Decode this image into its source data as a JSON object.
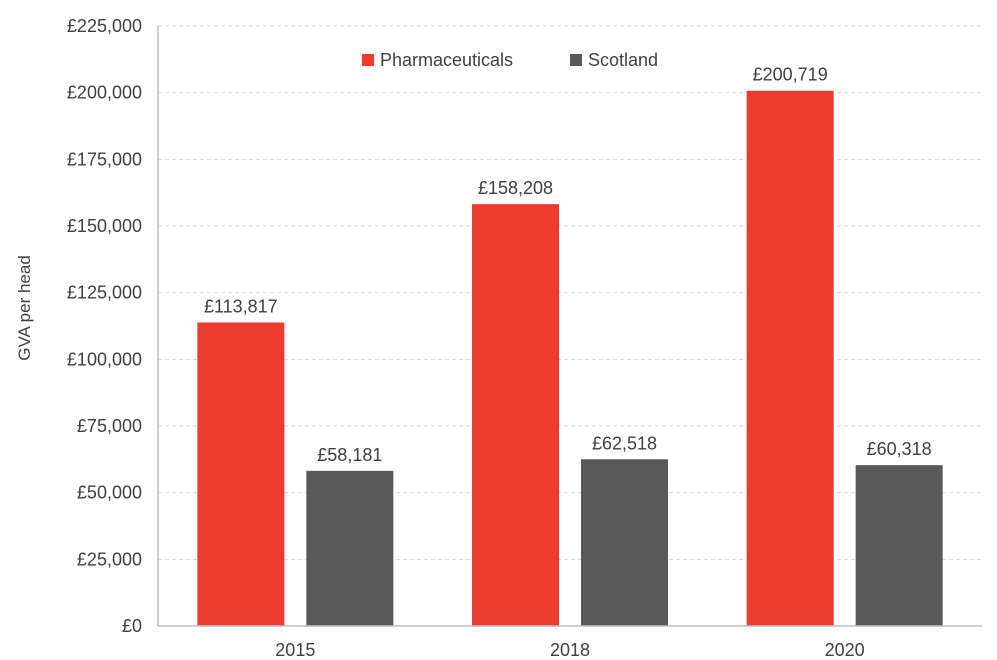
{
  "chart_data": {
    "type": "bar",
    "title": "",
    "xlabel": "",
    "ylabel": "GVA per head",
    "categories": [
      "2015",
      "2018",
      "2020"
    ],
    "series": [
      {
        "name": "Pharmaceuticals",
        "color": "#ee3b2f",
        "values": [
          113817,
          158208,
          200719
        ],
        "labels": [
          "£113,817",
          "£158,208",
          "£200,719"
        ]
      },
      {
        "name": "Scotland",
        "color": "#595959",
        "values": [
          58181,
          62518,
          60318
        ],
        "labels": [
          "£58,181",
          "£62,518",
          "£60,318"
        ]
      }
    ],
    "ylim": [
      0,
      225000
    ],
    "yticks": [
      0,
      25000,
      50000,
      75000,
      100000,
      125000,
      150000,
      175000,
      200000,
      225000
    ],
    "ytick_labels": [
      "£0",
      "£25,000",
      "£50,000",
      "£75,000",
      "£100,000",
      "£125,000",
      "£150,000",
      "£175,000",
      "£200,000",
      "£225,000"
    ],
    "grid": true,
    "legend_position": "top-center"
  }
}
